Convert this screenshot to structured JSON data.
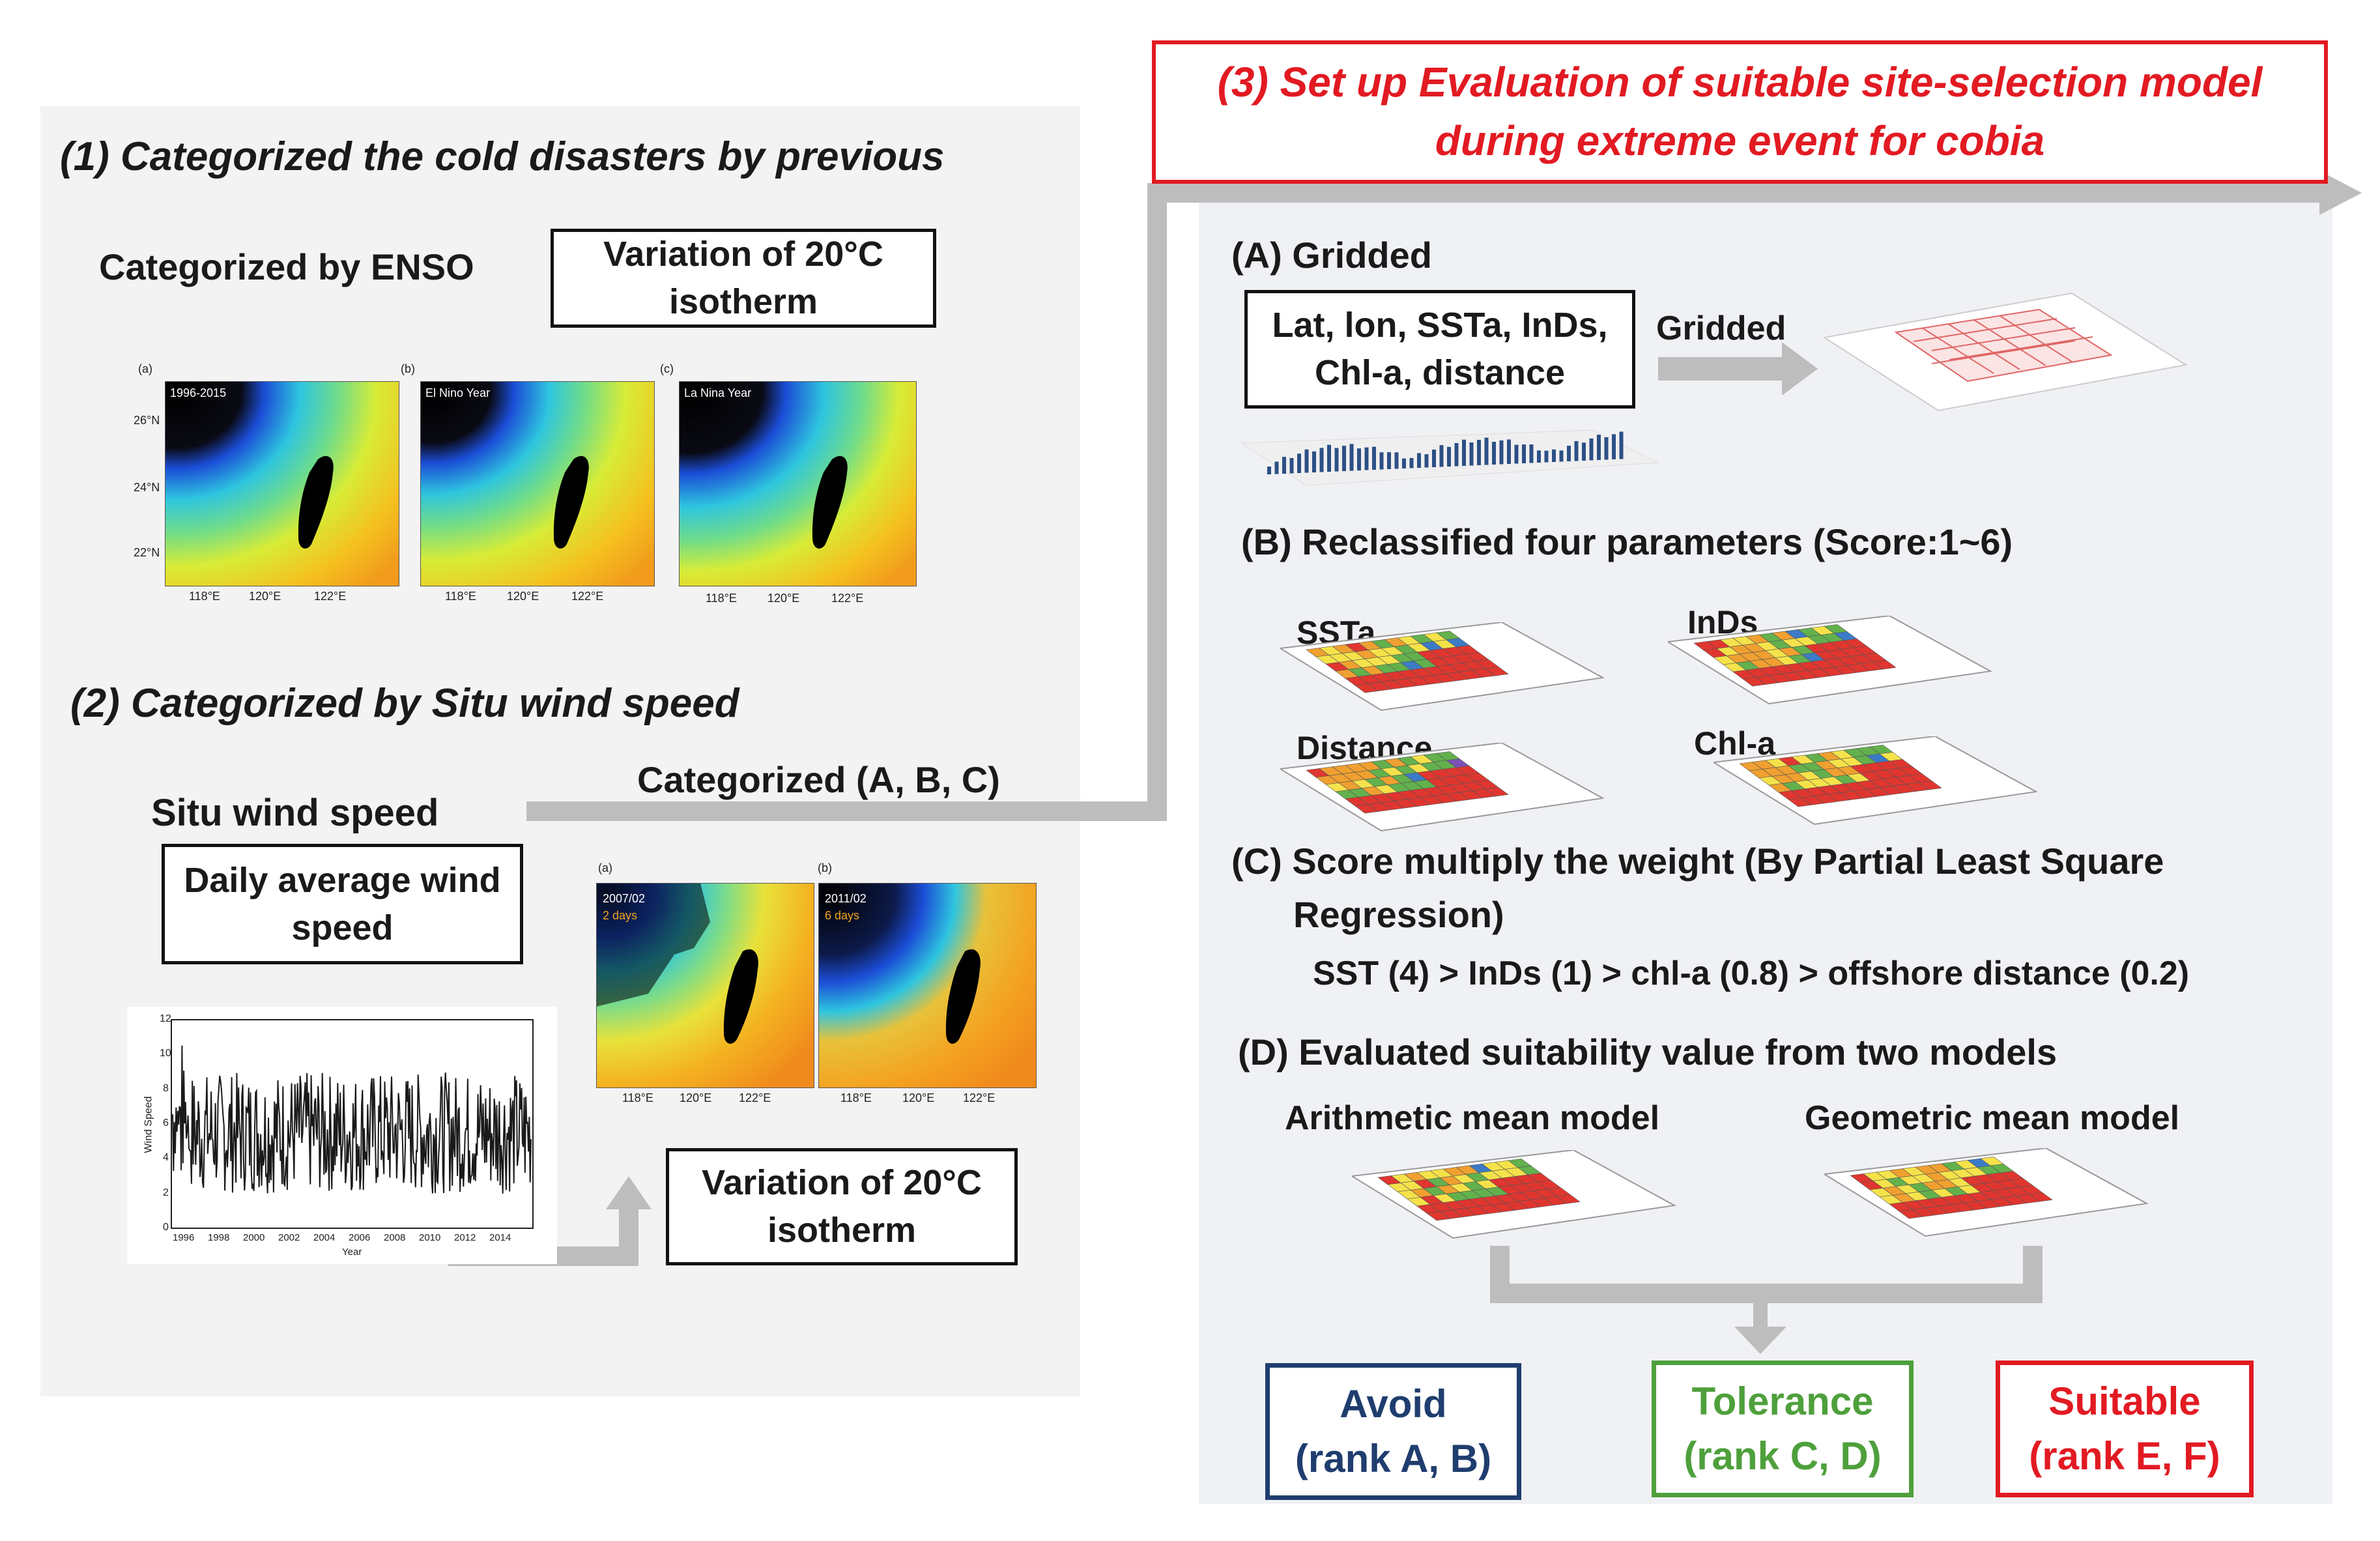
{
  "colors": {
    "panel_gray": "#f4f3f4",
    "panel_right": "#f0f1f4",
    "arrow_gray": "#bdbdbd",
    "accent_red": "#e21a22",
    "avoid_blue": "#1f3d6e",
    "tolerance_green": "#4ea03c",
    "suitable_red": "#e21a22"
  },
  "left": {
    "section1_title": "(1) Categorized the cold disasters by previous",
    "enso_label": "Categorized by ENSO",
    "enso_box": {
      "line1": "Variation of 20°C",
      "line2": "isotherm"
    },
    "enso_maps": [
      {
        "panel": "(a)",
        "caption": "1996-2015"
      },
      {
        "panel": "(b)",
        "caption": "El Nino Year"
      },
      {
        "panel": "(c)",
        "caption": "La Nina Year"
      }
    ],
    "lat_ticks": [
      "26°N",
      "24°N",
      "22°N"
    ],
    "lon_ticks": [
      "118°E",
      "120°E",
      "122°E"
    ],
    "section2_title": "(2) Categorized by Situ wind speed",
    "categorized_label": "Categorized (A, B, C)",
    "situ_label": "Situ wind speed",
    "daily_box": {
      "line1": "Daily average wind",
      "line2": "speed"
    },
    "wind_maps": [
      {
        "panel": "(a)",
        "caption": "2007/02",
        "days": "2 days"
      },
      {
        "panel": "(b)",
        "caption": "2011/02",
        "days": "6 days"
      }
    ],
    "wind_chart": {
      "ylabel": "Wind Speed",
      "xlabel": "Year",
      "y_ticks": [
        "12",
        "10",
        "8",
        "6",
        "4",
        "2",
        "0"
      ],
      "x_ticks": [
        "1996",
        "1998",
        "2000",
        "2002",
        "2004",
        "2006",
        "2008",
        "2010",
        "2012",
        "2014"
      ]
    },
    "isotherm_box2": {
      "line1": "Variation of 20°C",
      "line2": "isotherm"
    }
  },
  "right": {
    "title": {
      "line1": "(3)   Set up Evaluation of suitable site-selection model",
      "line2": "during extreme event for cobia"
    },
    "A": {
      "heading": "(A) Gridded",
      "box": {
        "line1": "Lat, lon, SSTa, InDs,",
        "line2": "Chl-a, distance"
      },
      "arrow_label": "Gridded"
    },
    "B": {
      "heading": "(B) Reclassified four parameters (Score:1~6)",
      "params": [
        "SSTa",
        "InDs",
        "Distance",
        "Chl-a"
      ]
    },
    "C": {
      "heading_line1": "(C) Score multiply the weight (By Partial Least Square",
      "heading_line2": "Regression)",
      "formula": "SST (4) > InDs (1) > chl-a (0.8) > offshore distance (0.2)"
    },
    "D": {
      "heading": "(D) Evaluated suitability value from two models",
      "model1": "Arithmetic mean model",
      "model2": "Geometric mean model"
    },
    "ranks": [
      {
        "name": "Avoid",
        "detail": "(rank A, B)"
      },
      {
        "name": "Tolerance",
        "detail": "(rank C, D)"
      },
      {
        "name": "Suitable",
        "detail": "(rank E, F)"
      }
    ]
  }
}
